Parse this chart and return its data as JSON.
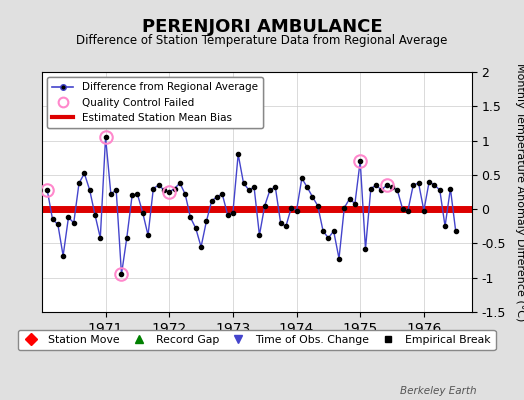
{
  "title": "PERENJORI AMBULANCE",
  "subtitle": "Difference of Station Temperature Data from Regional Average",
  "ylabel": "Monthly Temperature Anomaly Difference (°C)",
  "bias": 0.0,
  "ylim": [
    -1.5,
    2.0
  ],
  "background_color": "#e0e0e0",
  "plot_bg_color": "#ffffff",
  "grid_color": "#cccccc",
  "watermark": "Berkeley Earth",
  "time_values": [
    1970.083,
    1970.167,
    1970.25,
    1970.333,
    1970.417,
    1970.5,
    1970.583,
    1970.667,
    1970.75,
    1970.833,
    1970.917,
    1971.0,
    1971.083,
    1971.167,
    1971.25,
    1971.333,
    1971.417,
    1971.5,
    1971.583,
    1971.667,
    1971.75,
    1971.833,
    1971.917,
    1972.0,
    1972.083,
    1972.167,
    1972.25,
    1972.333,
    1972.417,
    1972.5,
    1972.583,
    1972.667,
    1972.75,
    1972.833,
    1972.917,
    1973.0,
    1973.083,
    1973.167,
    1973.25,
    1973.333,
    1973.417,
    1973.5,
    1973.583,
    1973.667,
    1973.75,
    1973.833,
    1973.917,
    1974.0,
    1974.083,
    1974.167,
    1974.25,
    1974.333,
    1974.417,
    1974.5,
    1974.583,
    1974.667,
    1974.75,
    1974.833,
    1974.917,
    1975.0,
    1975.083,
    1975.167,
    1975.25,
    1975.333,
    1975.417,
    1975.5,
    1975.583,
    1975.667,
    1975.75,
    1975.833,
    1975.917,
    1976.0,
    1976.083,
    1976.167,
    1976.25,
    1976.333,
    1976.417,
    1976.5
  ],
  "diff_values": [
    0.28,
    -0.15,
    -0.22,
    -0.68,
    -0.12,
    -0.2,
    0.38,
    0.52,
    0.28,
    -0.08,
    -0.42,
    1.05,
    0.22,
    0.28,
    -0.95,
    -0.42,
    0.2,
    0.22,
    -0.05,
    -0.38,
    0.3,
    0.35,
    0.28,
    0.25,
    0.3,
    0.38,
    0.22,
    -0.12,
    -0.28,
    -0.55,
    -0.18,
    0.12,
    0.18,
    0.22,
    -0.08,
    -0.05,
    0.8,
    0.38,
    0.28,
    0.32,
    -0.38,
    0.05,
    0.28,
    0.32,
    -0.2,
    -0.25,
    0.02,
    -0.02,
    0.45,
    0.32,
    0.18,
    0.05,
    -0.32,
    -0.42,
    -0.32,
    -0.72,
    0.02,
    0.15,
    0.08,
    0.7,
    -0.58,
    0.3,
    0.35,
    0.28,
    0.35,
    0.32,
    0.28,
    0.0,
    -0.02,
    0.35,
    0.38,
    -0.02,
    0.4,
    0.35,
    0.28,
    -0.25,
    0.3,
    -0.32
  ],
  "qc_failed_indices": [
    0,
    11,
    14,
    23,
    59,
    64
  ],
  "line_color": "#4444cc",
  "dot_color": "#000000",
  "bias_color": "#dd0000",
  "qc_color": "#ff88cc"
}
